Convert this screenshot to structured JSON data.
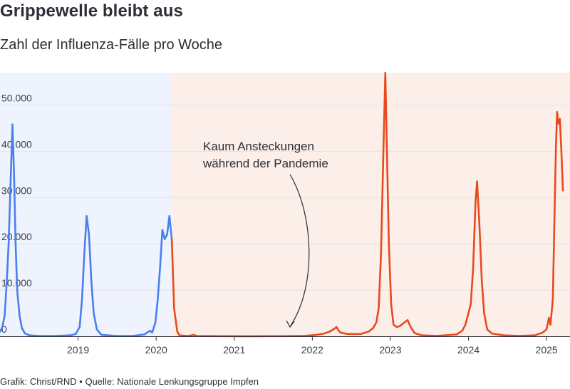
{
  "header": {
    "title": "Grippewelle bleibt aus",
    "subtitle": "Zahl der Influenza-Fälle pro Woche"
  },
  "footer": {
    "credit": "Grafik: Christ/RND",
    "separator": "•",
    "source": "Quelle: Nationale Lenkungsgruppe Impfen"
  },
  "colors": {
    "pre_pandemic_line": "#4a7ff0",
    "pandemic_line": "#e64a1e",
    "pre_pandemic_bg": "#eef3fd",
    "pandemic_bg": "#fcefea",
    "gridline": "#e3e3e3",
    "axis": "#2b2f36"
  },
  "chart_data": {
    "type": "line",
    "title": "Grippewelle bleibt aus",
    "subtitle": "Zahl der Influenza-Fälle pro Woche",
    "xlabel": "",
    "ylabel": "",
    "xlim": [
      2018.0,
      2025.3
    ],
    "ylim": [
      0,
      57000
    ],
    "grid": true,
    "y_ticks": [
      {
        "value": 0,
        "label": "0"
      },
      {
        "value": 10000,
        "label": "10.000"
      },
      {
        "value": 20000,
        "label": "20.000"
      },
      {
        "value": 30000,
        "label": "30.000"
      },
      {
        "value": 40000,
        "label": "40.000"
      },
      {
        "value": 50000,
        "label": "50.000"
      }
    ],
    "x_ticks": [
      {
        "value": 2019,
        "label": "2019"
      },
      {
        "value": 2020,
        "label": "2020"
      },
      {
        "value": 2021,
        "label": "2021"
      },
      {
        "value": 2022,
        "label": "2022"
      },
      {
        "value": 2023,
        "label": "2023"
      },
      {
        "value": 2024,
        "label": "2024"
      },
      {
        "value": 2025,
        "label": "2025"
      }
    ],
    "shaded_regions": [
      {
        "from": 2018.0,
        "to": 2020.2,
        "color_key": "pre_pandemic_bg"
      },
      {
        "from": 2020.2,
        "to": 2025.3,
        "color_key": "pandemic_bg"
      }
    ],
    "annotation": {
      "lines": [
        "Kaum Ansteckungen",
        "während der Pandemie"
      ],
      "target": {
        "x": 2021.4,
        "y": 1000
      }
    },
    "series": [
      {
        "color_key": "pre_pandemic_line",
        "points": [
          [
            2018.0,
            1000
          ],
          [
            2018.03,
            2000
          ],
          [
            2018.06,
            4500
          ],
          [
            2018.09,
            13000
          ],
          [
            2018.11,
            20000
          ],
          [
            2018.135,
            33000
          ],
          [
            2018.16,
            45800
          ],
          [
            2018.18,
            35000
          ],
          [
            2018.2,
            20000
          ],
          [
            2018.22,
            10000
          ],
          [
            2018.25,
            4500
          ],
          [
            2018.28,
            1800
          ],
          [
            2018.32,
            600
          ],
          [
            2018.38,
            200
          ],
          [
            2018.5,
            80
          ],
          [
            2018.7,
            60
          ],
          [
            2018.9,
            200
          ],
          [
            2018.97,
            500
          ],
          [
            2019.02,
            2000
          ],
          [
            2019.05,
            8000
          ],
          [
            2019.08,
            18000
          ],
          [
            2019.11,
            26000
          ],
          [
            2019.14,
            22000
          ],
          [
            2019.17,
            12000
          ],
          [
            2019.2,
            5000
          ],
          [
            2019.24,
            1500
          ],
          [
            2019.3,
            300
          ],
          [
            2019.5,
            80
          ],
          [
            2019.7,
            60
          ],
          [
            2019.85,
            400
          ],
          [
            2019.92,
            1200
          ],
          [
            2019.95,
            800
          ],
          [
            2019.99,
            3000
          ],
          [
            2020.02,
            8000
          ],
          [
            2020.05,
            15000
          ],
          [
            2020.08,
            23000
          ],
          [
            2020.11,
            21000
          ],
          [
            2020.14,
            22000
          ],
          [
            2020.17,
            26000
          ],
          [
            2020.2,
            21000
          ]
        ]
      },
      {
        "color_key": "pandemic_line",
        "points": [
          [
            2020.2,
            21000
          ],
          [
            2020.23,
            6000
          ],
          [
            2020.27,
            1000
          ],
          [
            2020.3,
            200
          ],
          [
            2020.4,
            60
          ],
          [
            2020.48,
            300
          ],
          [
            2020.52,
            60
          ],
          [
            2020.8,
            30
          ],
          [
            2021.2,
            20
          ],
          [
            2021.6,
            30
          ],
          [
            2021.9,
            100
          ],
          [
            2022.05,
            300
          ],
          [
            2022.15,
            600
          ],
          [
            2022.22,
            1000
          ],
          [
            2022.28,
            1600
          ],
          [
            2022.31,
            2000
          ],
          [
            2022.33,
            1400
          ],
          [
            2022.36,
            800
          ],
          [
            2022.45,
            500
          ],
          [
            2022.62,
            500
          ],
          [
            2022.72,
            1000
          ],
          [
            2022.78,
            1800
          ],
          [
            2022.82,
            3000
          ],
          [
            2022.85,
            6000
          ],
          [
            2022.88,
            18000
          ],
          [
            2022.91,
            40000
          ],
          [
            2022.935,
            57000
          ],
          [
            2022.96,
            36000
          ],
          [
            2022.98,
            20000
          ],
          [
            2023.01,
            7000
          ],
          [
            2023.04,
            2500
          ],
          [
            2023.08,
            2000
          ],
          [
            2023.12,
            2200
          ],
          [
            2023.18,
            3000
          ],
          [
            2023.22,
            3500
          ],
          [
            2023.26,
            2000
          ],
          [
            2023.31,
            700
          ],
          [
            2023.4,
            200
          ],
          [
            2023.6,
            100
          ],
          [
            2023.85,
            400
          ],
          [
            2023.92,
            1200
          ],
          [
            2023.96,
            2500
          ],
          [
            2024.0,
            5000
          ],
          [
            2024.03,
            7000
          ],
          [
            2024.06,
            15000
          ],
          [
            2024.09,
            29000
          ],
          [
            2024.11,
            33500
          ],
          [
            2024.14,
            24000
          ],
          [
            2024.17,
            12000
          ],
          [
            2024.2,
            5000
          ],
          [
            2024.24,
            1500
          ],
          [
            2024.3,
            600
          ],
          [
            2024.45,
            200
          ],
          [
            2024.65,
            100
          ],
          [
            2024.85,
            200
          ],
          [
            2024.95,
            800
          ],
          [
            2025.0,
            1500
          ],
          [
            2025.03,
            4000
          ],
          [
            2025.05,
            2500
          ],
          [
            2025.08,
            8000
          ],
          [
            2025.1,
            25000
          ],
          [
            2025.12,
            41000
          ],
          [
            2025.135,
            48500
          ],
          [
            2025.15,
            46000
          ],
          [
            2025.17,
            47000
          ],
          [
            2025.19,
            40000
          ],
          [
            2025.21,
            31500
          ]
        ]
      }
    ]
  }
}
